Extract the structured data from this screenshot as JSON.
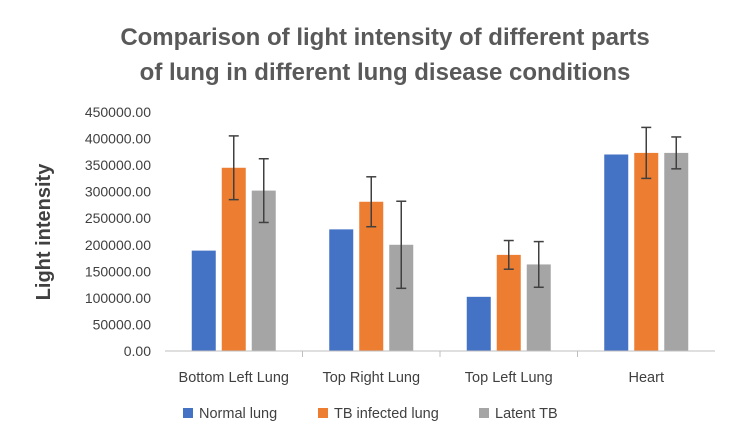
{
  "chart_data": {
    "type": "bar",
    "title_lines": [
      "Comparison of light intensity of different parts",
      "of lung in different lung disease conditions"
    ],
    "xlabel": "",
    "ylabel": "Light intensity",
    "categories": [
      "Bottom Left Lung",
      "Top Right Lung",
      "Top Left Lung",
      "Heart"
    ],
    "series": [
      {
        "name": "Normal lung",
        "color": "#4472C4",
        "values": [
          189000,
          229000,
          102000,
          370000
        ],
        "errors": [
          null,
          null,
          null,
          null
        ]
      },
      {
        "name": "TB infected lung",
        "color": "#ED7D31",
        "values": [
          345000,
          281000,
          181000,
          373000
        ],
        "errors": [
          60000,
          47000,
          27000,
          48000
        ]
      },
      {
        "name": "Latent TB",
        "color": "#A5A5A5",
        "values": [
          302000,
          200000,
          163000,
          373000
        ],
        "errors": [
          60000,
          82000,
          43000,
          30000
        ]
      }
    ],
    "yticks": [
      "0.00",
      "50000.00",
      "100000.00",
      "150000.00",
      "200000.00",
      "250000.00",
      "300000.00",
      "350000.00",
      "400000.00",
      "450000.00"
    ],
    "ylim": [
      0,
      450000
    ],
    "grid": false,
    "legend_position": "bottom"
  }
}
